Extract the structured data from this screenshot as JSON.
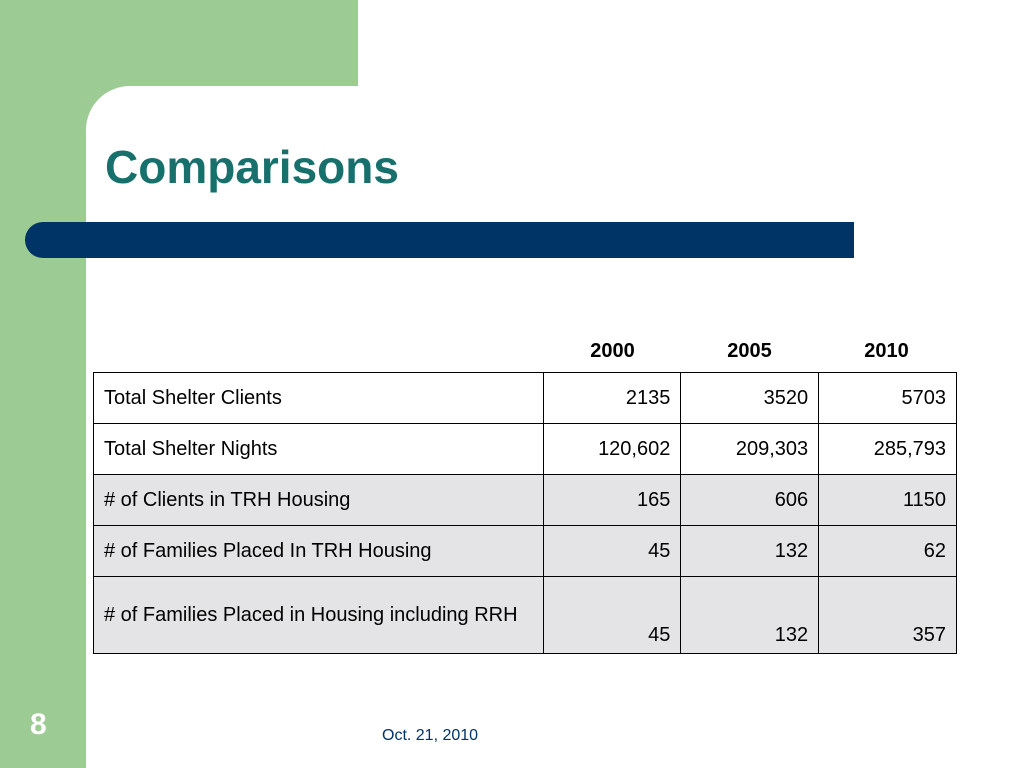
{
  "slide": {
    "title": "Comparisons",
    "page_number": "8",
    "footer_date": "Oct. 21, 2010"
  },
  "table": {
    "columns": [
      "2000",
      "2005",
      "2010"
    ],
    "rows": [
      {
        "label": "Total Shelter Clients",
        "values": [
          "2135",
          "3520",
          "5703"
        ]
      },
      {
        "label": "Total Shelter Nights",
        "values": [
          "120,602",
          "209,303",
          "285,793"
        ]
      },
      {
        "label": "# of Clients in TRH Housing",
        "values": [
          "165",
          "606",
          "1150"
        ]
      },
      {
        "label": "# of Families Placed In TRH Housing",
        "values": [
          "45",
          "132",
          "62"
        ]
      },
      {
        "label": "# of Families Placed in Housing including RRH",
        "values": [
          "45",
          "132",
          "357"
        ]
      }
    ]
  },
  "colors": {
    "background_green": "#9ccb94",
    "title_teal": "#17706b",
    "bar_navy": "#003366",
    "shaded_row": "#e4e4e6"
  }
}
